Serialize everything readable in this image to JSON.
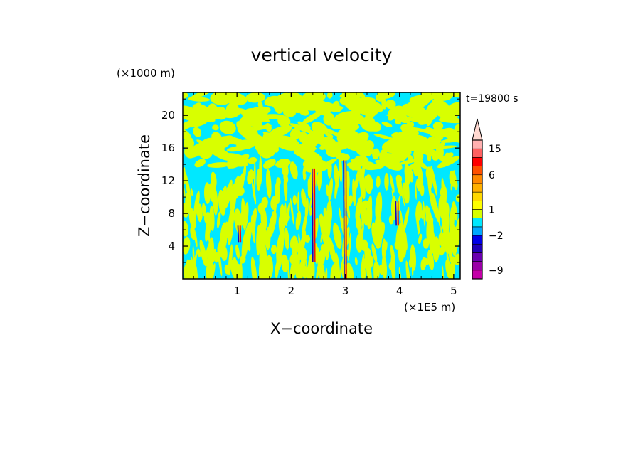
{
  "chart_data": {
    "type": "heatmap",
    "title": "vertical velocity",
    "xlabel": "X−coordinate",
    "ylabel": "Z−coordinate",
    "x_unit": "(×1E5 m)",
    "y_unit": "(×1000 m)",
    "time_label": "t=19800 s",
    "xlim": [
      0,
      5.12
    ],
    "ylim": [
      0,
      22.8
    ],
    "x_ticks": [
      1,
      2,
      3,
      4,
      5
    ],
    "y_ticks": [
      4,
      8,
      12,
      16,
      20
    ],
    "x_tick_labels": [
      "1",
      "2",
      "3",
      "4",
      "5"
    ],
    "y_tick_labels": [
      "4",
      "8",
      "12",
      "16",
      "20"
    ],
    "colorbar": {
      "labels": [
        "15",
        "6",
        "1",
        "−2",
        "−9"
      ],
      "label_values": [
        15,
        6,
        1,
        -2,
        -9
      ],
      "levels": [
        -12,
        -9,
        -6,
        -4,
        -3,
        -2,
        -1,
        0,
        1,
        2,
        3,
        4,
        6,
        9,
        12,
        15,
        20
      ],
      "colors": [
        "#c400a8",
        "#9a00a8",
        "#6a00b0",
        "#2000b8",
        "#0000e8",
        "#00a8ff",
        "#00e8ff",
        "#d8ff00",
        "#ffff00",
        "#ffd800",
        "#ffb000",
        "#ff8800",
        "#ff5000",
        "#ff0000",
        "#ff6060",
        "#ffb0b0",
        "#ffd0d0"
      ],
      "overflow_color": "#ffd8d0"
    },
    "field_colors": {
      "positive": "#d8ff00",
      "negative": "#00e8ff"
    },
    "updrafts": [
      {
        "x": 2.42,
        "z_bottom": 2.0,
        "z_top": 13.5,
        "min": -9,
        "max": 15
      },
      {
        "x": 3.0,
        "z_bottom": 0.0,
        "z_top": 14.5,
        "min": -9,
        "max": 15
      },
      {
        "x": 3.96,
        "z_bottom": 6.5,
        "z_top": 9.5,
        "min": -9,
        "max": 6
      },
      {
        "x": 1.05,
        "z_bottom": 4.5,
        "z_top": 6.5,
        "min": -3,
        "max": 2
      }
    ]
  }
}
